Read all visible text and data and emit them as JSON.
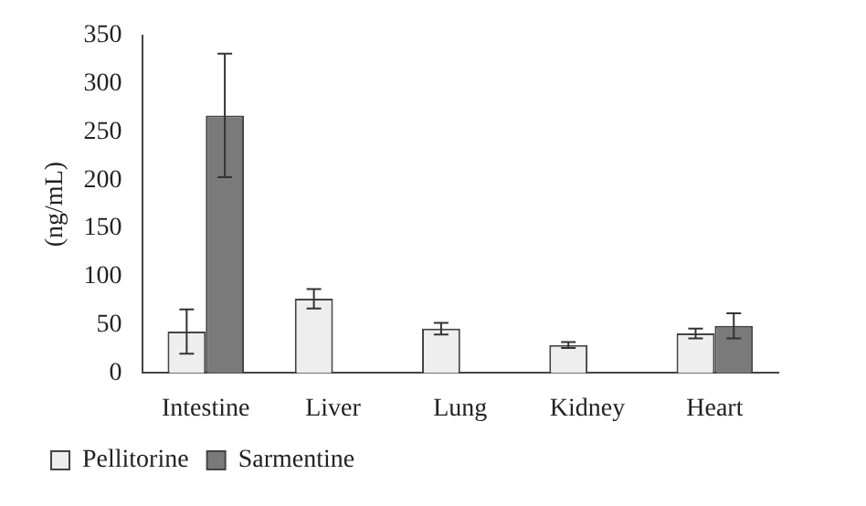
{
  "chart_data": {
    "type": "bar",
    "ylabel": "(ng/mL)",
    "categories": [
      "Intestine",
      "Liver",
      "Lung",
      "Kidney",
      "Heart"
    ],
    "series": [
      {
        "name": "Pellitorine",
        "color": "#eeeeee",
        "values": [
          43,
          77,
          46,
          29,
          41
        ],
        "errors": [
          23,
          10,
          6,
          3,
          5
        ]
      },
      {
        "name": "Sarmentine",
        "color": "#7a7a7a",
        "values": [
          267,
          null,
          null,
          null,
          49
        ],
        "errors": [
          64,
          null,
          null,
          null,
          13
        ]
      }
    ],
    "ylim": [
      0,
      350
    ],
    "yticks": [
      0,
      50,
      100,
      150,
      200,
      250,
      300,
      350
    ],
    "grid": false,
    "legend": "bottom left"
  }
}
